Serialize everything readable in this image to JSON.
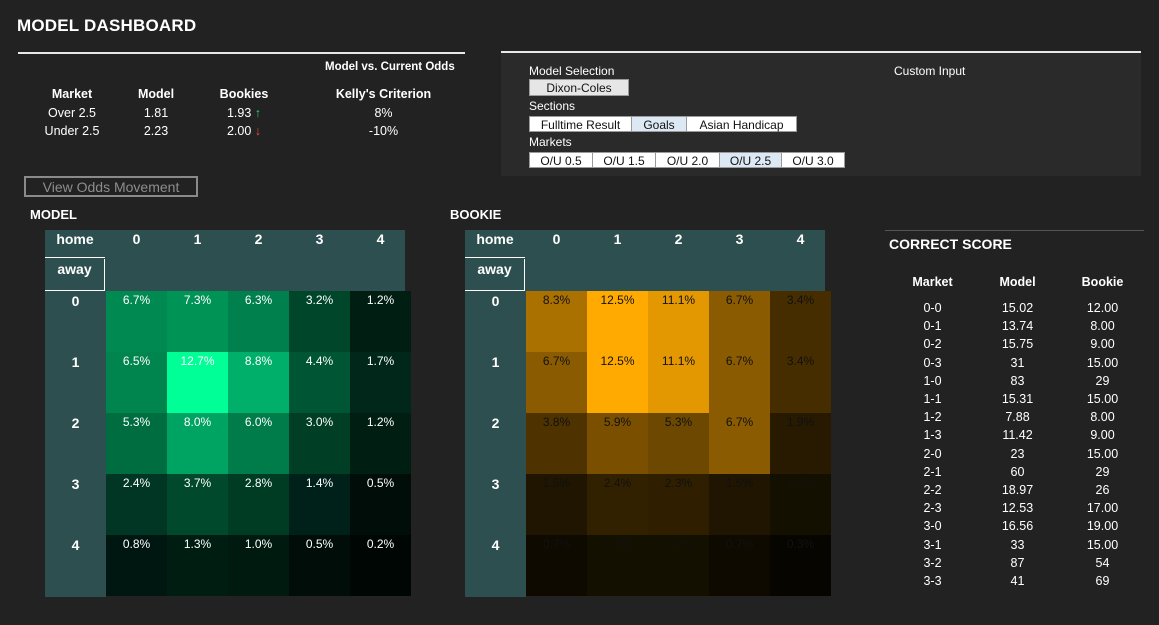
{
  "header": {
    "title": "MODEL DASHBOARD"
  },
  "odds": {
    "subtitle": "Model vs. Current Odds",
    "columns": [
      "Market",
      "Model",
      "Bookies",
      "Kelly's Criterion"
    ],
    "rows": [
      {
        "market": "Over 2.5",
        "model": "1.81",
        "bookies": "1.93",
        "arrow": "↑",
        "kelly": "8%"
      },
      {
        "market": "Under 2.5",
        "model": "2.23",
        "bookies": "2.00",
        "arrow": "↓",
        "kelly": "-10%"
      }
    ]
  },
  "controls": {
    "model_selection_label": "Model Selection",
    "model_value": "Dixon-Coles",
    "custom_input_label": "Custom Input",
    "sections_label": "Sections",
    "sections": [
      "Fulltime Result",
      "Goals",
      "Asian Handicap"
    ],
    "selected_section": "Goals",
    "markets_label": "Markets",
    "markets": [
      "O/U 0.5",
      "O/U 1.5",
      "O/U 2.0",
      "O/U 2.5",
      "O/U 3.0"
    ],
    "selected_market": "O/U 2.5",
    "view_button": "View Odds Movement"
  },
  "model_heatmap": {
    "title": "MODEL",
    "home_label": "home",
    "away_label": "away",
    "columns": [
      "0",
      "1",
      "2",
      "3",
      "4"
    ],
    "rows": [
      "0",
      "1",
      "2",
      "3",
      "4"
    ],
    "values": [
      [
        "6.7%",
        "7.3%",
        "6.3%",
        "3.2%",
        "1.2%"
      ],
      [
        "6.5%",
        "12.7%",
        "8.8%",
        "4.4%",
        "1.7%"
      ],
      [
        "5.3%",
        "8.0%",
        "6.0%",
        "3.0%",
        "1.2%"
      ],
      [
        "2.4%",
        "3.7%",
        "2.8%",
        "1.4%",
        "0.5%"
      ],
      [
        "0.8%",
        "1.3%",
        "1.0%",
        "0.5%",
        "0.2%"
      ]
    ],
    "colors": [
      [
        "#008a52",
        "#009356",
        "#00804c",
        "#00462a",
        "#001f12"
      ],
      [
        "#00854f",
        "#00ff96",
        "#00b06a",
        "#005634",
        "#00271a"
      ],
      [
        "#006d41",
        "#00a462",
        "#007b4a",
        "#003f26",
        "#001f12"
      ],
      [
        "#003623",
        "#00492c",
        "#003b24",
        "#00211a",
        "#000d08"
      ],
      [
        "#001610",
        "#001d12",
        "#001a10",
        "#000d09",
        "#000604"
      ]
    ]
  },
  "bookie_heatmap": {
    "title": "BOOKIE",
    "home_label": "home",
    "away_label": "away",
    "columns": [
      "0",
      "1",
      "2",
      "3",
      "4"
    ],
    "rows": [
      "0",
      "1",
      "2",
      "3",
      "4"
    ],
    "values": [
      [
        "8.3%",
        "12.5%",
        "11.1%",
        "6.7%",
        "3.4%"
      ],
      [
        "6.7%",
        "12.5%",
        "11.1%",
        "6.7%",
        "3.4%"
      ],
      [
        "3.8%",
        "5.9%",
        "5.3%",
        "6.7%",
        "1.9%"
      ],
      [
        "1.5%",
        "2.4%",
        "2.3%",
        "1.5%",
        "1.0%"
      ],
      [
        "0.7%",
        "1.0%",
        "1.0%",
        "0.7%",
        "0.3%"
      ]
    ],
    "colors": [
      [
        "#aa7000",
        "#ffaa00",
        "#e39700",
        "#8a5b00",
        "#452d00"
      ],
      [
        "#8a5b00",
        "#ffaa00",
        "#e39700",
        "#8a5b00",
        "#452d00"
      ],
      [
        "#4e3300",
        "#7a5000",
        "#6d4800",
        "#8a5b00",
        "#271a00"
      ],
      [
        "#1f1500",
        "#312100",
        "#2f1f00",
        "#1f1500",
        "#141000"
      ],
      [
        "#0e0a00",
        "#141000",
        "#141000",
        "#0e0a00",
        "#070500"
      ]
    ]
  },
  "correct_score": {
    "title": "CORRECT SCORE",
    "columns": [
      "Market",
      "Model",
      "Bookie"
    ],
    "rows": [
      [
        "0-0",
        "15.02",
        "12.00"
      ],
      [
        "0-1",
        "13.74",
        "8.00"
      ],
      [
        "0-2",
        "15.75",
        "9.00"
      ],
      [
        "0-3",
        "31",
        "15.00"
      ],
      [
        "1-0",
        "83",
        "29"
      ],
      [
        "1-1",
        "15.31",
        "15.00"
      ],
      [
        "1-2",
        "7.88",
        "8.00"
      ],
      [
        "1-3",
        "11.42",
        "9.00"
      ],
      [
        "2-0",
        "23",
        "15.00"
      ],
      [
        "2-1",
        "60",
        "29"
      ],
      [
        "2-2",
        "18.97",
        "26"
      ],
      [
        "2-3",
        "12.53",
        "17.00"
      ],
      [
        "3-0",
        "16.56",
        "19.00"
      ],
      [
        "3-1",
        "33",
        "15.00"
      ],
      [
        "3-2",
        "87",
        "54"
      ],
      [
        "3-3",
        "41",
        "69"
      ]
    ]
  }
}
